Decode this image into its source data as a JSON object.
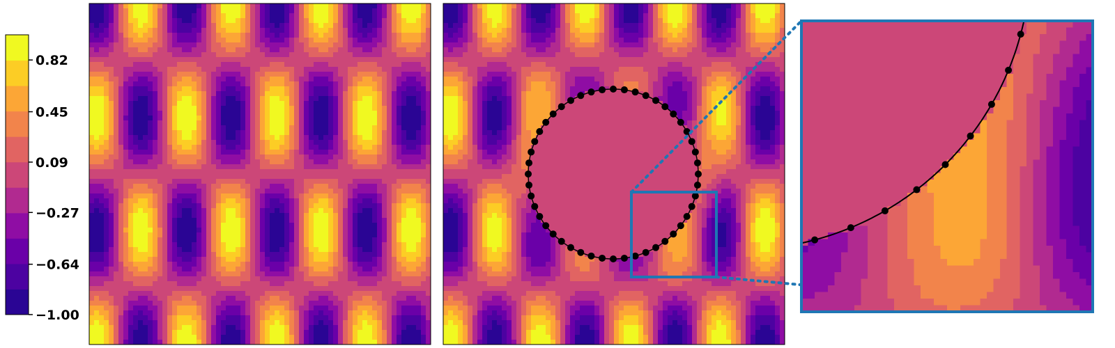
{
  "chart_data": [
    {
      "type": "heatmap",
      "kind": "filled-contour",
      "field": "sin(k*x) * cos(m*y) standing-wave pattern",
      "panel": "left",
      "grid": false,
      "axes_ticks": "none"
    },
    {
      "type": "heatmap",
      "kind": "filled-contour",
      "field": "same wave field with circular obstacle (field suppressed inside circle)",
      "panel": "middle",
      "obstacle": {
        "shape": "circle",
        "marker_points": 48,
        "marker_color": "#000000"
      },
      "zoom_box_color": "#1f77b4",
      "grid": false,
      "axes_ticks": "none"
    },
    {
      "type": "heatmap",
      "kind": "filled-contour",
      "panel": "right-inset",
      "field": "magnified view of middle panel zoom box",
      "frame_color": "#1f77b4",
      "connector_style": "dotted"
    }
  ],
  "colorbar": {
    "colormap": "plasma",
    "min": -1.0,
    "max": 1.0,
    "levels": 11,
    "tick_values": [
      0.82,
      0.45,
      0.09,
      -0.27,
      -0.64,
      -1.0
    ],
    "tick_labels": [
      "0.82",
      "0.45",
      "0.09",
      "−0.27",
      "−0.64",
      "−1.00"
    ],
    "colors": [
      "#2a0594",
      "#4c02a1",
      "#6a00a8",
      "#8f0da4",
      "#b12a90",
      "#cc4778",
      "#e16462",
      "#f2844b",
      "#fca636",
      "#fccd25",
      "#f0f921"
    ]
  }
}
